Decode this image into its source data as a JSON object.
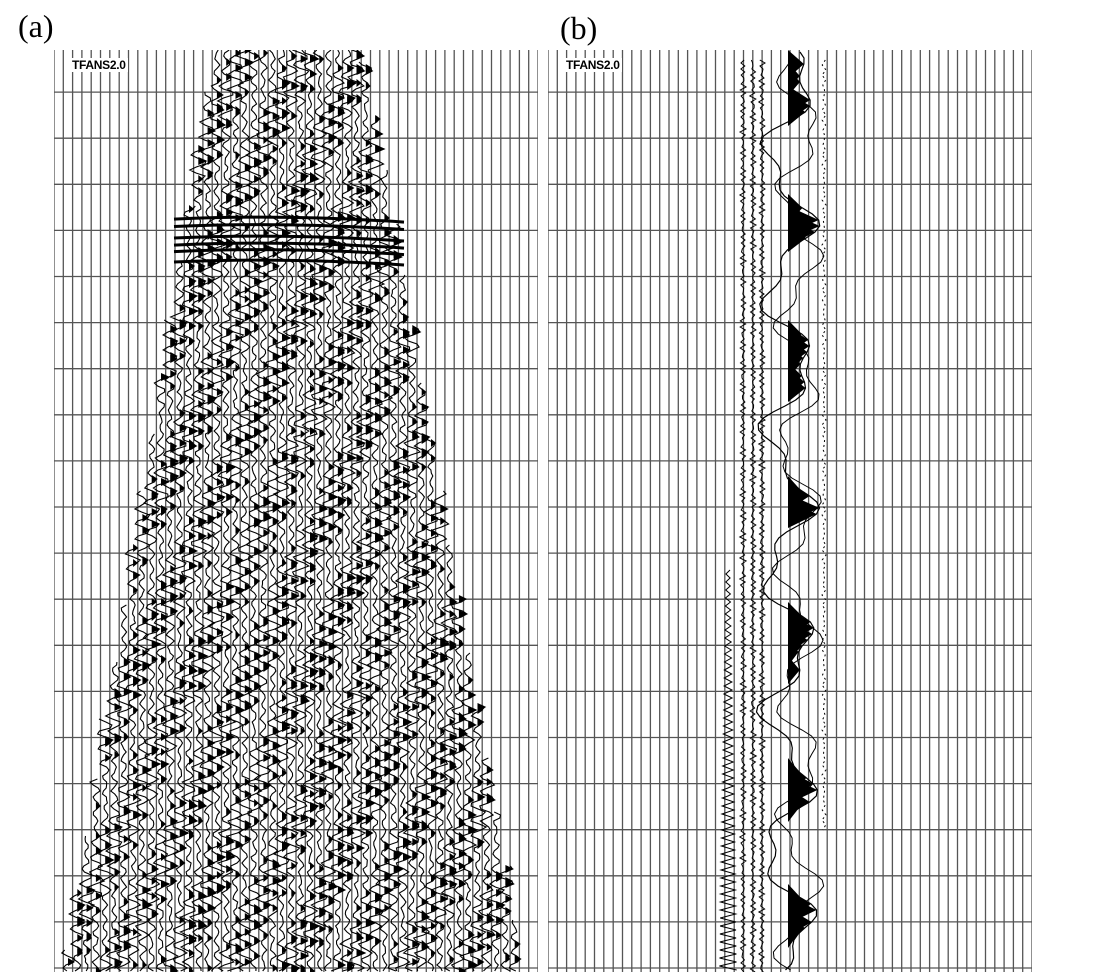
{
  "figure": {
    "panels": [
      {
        "id": "a",
        "label": "(a)",
        "tag": "TFANS2.0"
      },
      {
        "id": "b",
        "label": "(b)",
        "tag": "TFANS2.0"
      }
    ]
  },
  "colors": {
    "grid_line": "#555555",
    "trace": "#000000",
    "background": "#ffffff"
  }
}
